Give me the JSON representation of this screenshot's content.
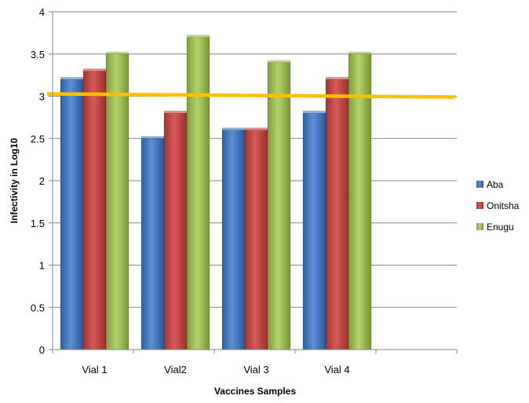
{
  "chart_data": {
    "type": "bar",
    "categories": [
      "Vial 1",
      "Vial2",
      "Vial 3",
      "Vial 4"
    ],
    "series": [
      {
        "name": "Aba",
        "values": [
          3.2,
          2.5,
          2.6,
          2.8
        ]
      },
      {
        "name": "Onitsha",
        "values": [
          3.3,
          2.8,
          2.6,
          3.2
        ]
      },
      {
        "name": "Enugu",
        "values": [
          3.5,
          3.7,
          3.4,
          3.5
        ]
      }
    ],
    "reference_line": {
      "value": 3.0
    },
    "xlabel": "Vaccines Samples",
    "ylabel": "Infectivity in Log10",
    "ylim": [
      0,
      4
    ],
    "yticks": [
      "0",
      "0.5",
      "1",
      "1.5",
      "2",
      "2.5",
      "3",
      "3.5",
      "4"
    ],
    "grid": true,
    "legend": "right",
    "colors": {
      "Aba": "#4a7ebb",
      "Onitsha": "#be4b48",
      "Enugu": "#98b954",
      "reference_line": "#ffc000"
    }
  }
}
